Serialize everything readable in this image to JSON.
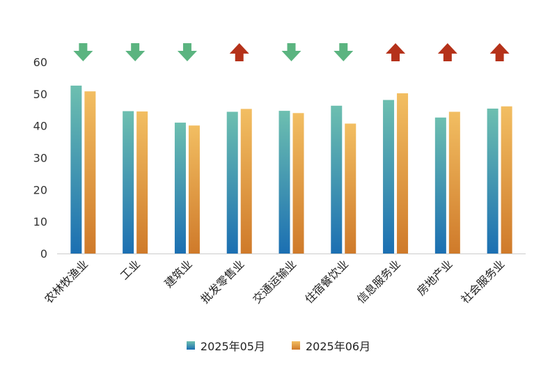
{
  "chart_data": {
    "type": "bar",
    "title": "",
    "xlabel": "",
    "ylabel": "",
    "ylim": [
      0,
      60
    ],
    "yticks": [
      0,
      10,
      20,
      30,
      40,
      50,
      60
    ],
    "grid": false,
    "legend_position": "bottom",
    "categories": [
      "农林牧渔业",
      "工业",
      "建筑业",
      "批发零售业",
      "交通运输业",
      "住宿餐饮业",
      "信息服务业",
      "房地产业",
      "社会服务业"
    ],
    "series": [
      {
        "name": "2025年05月",
        "values": [
          52.6,
          44.6,
          41.0,
          44.4,
          44.7,
          46.3,
          48.1,
          42.6,
          45.4
        ],
        "color_top": "#6dbfb0",
        "color_bottom": "#1b6fb2"
      },
      {
        "name": "2025年06月",
        "values": [
          50.8,
          44.5,
          40.1,
          45.3,
          44.0,
          40.7,
          50.2,
          44.4,
          46.1
        ],
        "color_top": "#f2be62",
        "color_bottom": "#cf7a2a"
      }
    ],
    "trend_arrows": [
      "down",
      "down",
      "down",
      "up",
      "down",
      "down",
      "up",
      "up",
      "up"
    ],
    "colors": {
      "up": "#b5321a",
      "down": "#5bb480",
      "axis": "#cccccc"
    }
  }
}
